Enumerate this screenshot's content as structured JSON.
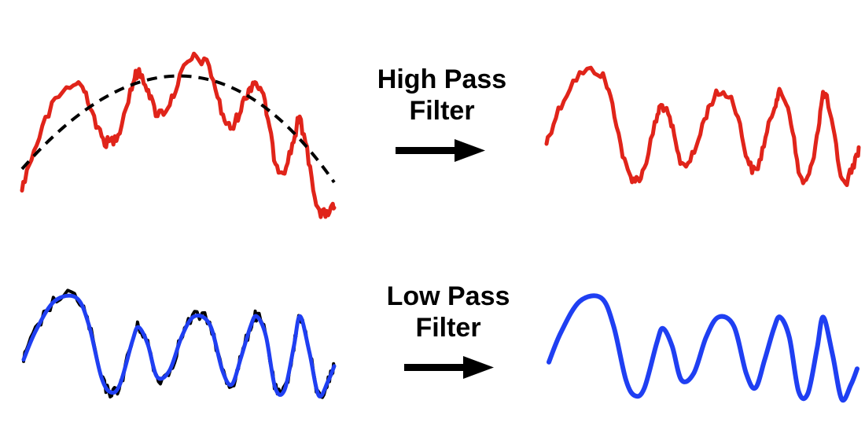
{
  "high_pass": {
    "line1": "High Pass",
    "line2": "Filter"
  },
  "low_pass": {
    "line1": "Low Pass",
    "line2": "Filter"
  },
  "colors": {
    "noisy_red": "#e0241a",
    "trend_black": "#000000",
    "smooth_blue": "#1f3ff2",
    "arrow": "#000000"
  }
}
